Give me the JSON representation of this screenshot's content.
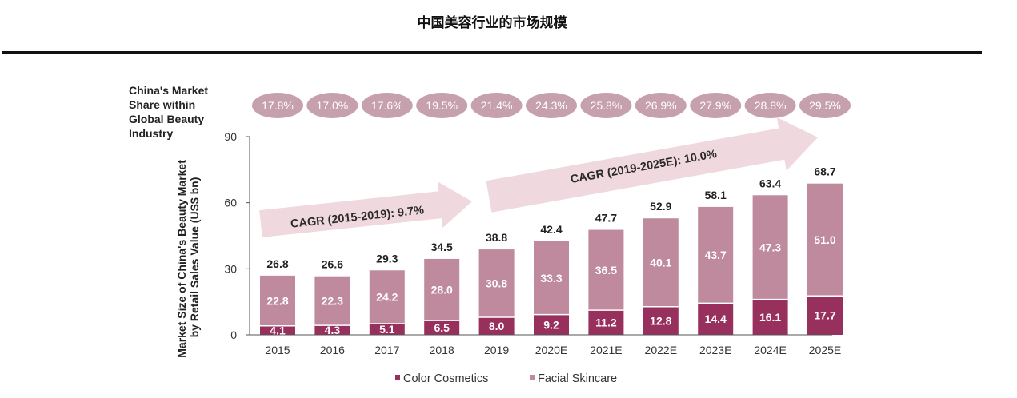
{
  "page": {
    "title": "中国美容行业的市场规模"
  },
  "share_row": {
    "label_lines": [
      "China's Market",
      "Share within",
      "Global Beauty",
      "Industry"
    ]
  },
  "chart_data": {
    "type": "bar",
    "stacked": true,
    "categories": [
      "2015",
      "2016",
      "2017",
      "2018",
      "2019",
      "2020E",
      "2021E",
      "2022E",
      "2023E",
      "2024E",
      "2025E"
    ],
    "series": [
      {
        "name": "Color Cosmetics",
        "color": "#98305e",
        "values": [
          4.1,
          4.3,
          5.1,
          6.5,
          8.0,
          9.2,
          11.2,
          12.8,
          14.4,
          16.1,
          17.7
        ]
      },
      {
        "name": "Facial Skincare",
        "color": "#bf8a9d",
        "values": [
          22.8,
          22.3,
          24.2,
          28.0,
          30.8,
          33.3,
          36.5,
          40.1,
          43.7,
          47.3,
          51.0
        ]
      }
    ],
    "totals": [
      "26.8",
      "26.6",
      "29.3",
      "34.5",
      "38.8",
      "42.4",
      "47.7",
      "52.9",
      "58.1",
      "63.4",
      "68.7"
    ],
    "global_share": [
      "17.8%",
      "17.0%",
      "17.6%",
      "19.5%",
      "21.4%",
      "24.3%",
      "25.8%",
      "26.9%",
      "27.9%",
      "28.8%",
      "29.5%"
    ],
    "ylabel_lines": [
      "Market Size of China's Beauty Market",
      "by Retail Sales Value (US$ bn)"
    ],
    "xlabel": "",
    "ylim": [
      0,
      90
    ],
    "yticks": [
      0,
      30,
      60,
      90
    ],
    "grid": false,
    "legend_position": "bottom-center",
    "annotations": [
      {
        "text": "CAGR (2015-2019): 9.7%",
        "from": "2015",
        "to": "2019"
      },
      {
        "text": "CAGR (2019-2025E): 10.0%",
        "from": "2019",
        "to": "2025E"
      }
    ],
    "colors": {
      "pill": "#c6a0ac",
      "arrow": "#f0d8df",
      "axis": "#555555"
    }
  }
}
